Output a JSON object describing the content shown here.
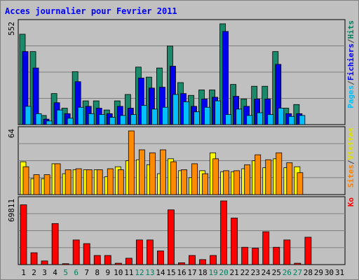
{
  "chart_data": {
    "type": "bar",
    "title": "Acces journalier pour Fevrier 2011",
    "days": [
      "1",
      "2",
      "3",
      "4",
      "5",
      "6",
      "7",
      "8",
      "9",
      "10",
      "11",
      "12",
      "13",
      "14",
      "15",
      "16",
      "17",
      "18",
      "19",
      "20",
      "21",
      "22",
      "23",
      "24",
      "25",
      "26",
      "27",
      "28",
      "29",
      "30",
      "31"
    ],
    "weekend_days": [
      "5",
      "6",
      "12",
      "13",
      "19",
      "20",
      "26",
      "27"
    ],
    "panels": [
      {
        "id": "hits",
        "ymax": 552,
        "ymax_label": "552",
        "right_labels": [
          {
            "text": "Pages",
            "color": "#00bfff"
          },
          {
            "text": "/",
            "color": "#404040"
          },
          {
            "text": "Fichiers",
            "color": "#0000ff"
          },
          {
            "text": "/",
            "color": "#404040"
          },
          {
            "text": "Hits",
            "color": "#008060"
          }
        ],
        "series": [
          {
            "name": "Hits",
            "color": "#1a8a6a",
            "values": [
              495,
              400,
              50,
              170,
              90,
              290,
              130,
              130,
              80,
              130,
              165,
              315,
              260,
              310,
              430,
              230,
              160,
              190,
              190,
              552,
              220,
              140,
              210,
              210,
              400,
              90,
              110,
              0,
              0,
              0,
              0
            ]
          },
          {
            "name": "Fichiers",
            "color": "#0000ee",
            "values": [
              400,
              310,
              30,
              120,
              60,
              235,
              100,
              90,
              60,
              100,
              90,
              255,
              200,
              205,
              320,
              170,
              100,
              140,
              150,
              510,
              155,
              100,
              140,
              140,
              330,
              60,
              60,
              0,
              0,
              0,
              0
            ]
          },
          {
            "name": "Pages",
            "color": "#00c0ff",
            "values": [
              100,
              60,
              20,
              80,
              35,
              95,
              60,
              55,
              40,
              50,
              55,
              105,
              85,
              95,
              165,
              125,
              70,
              95,
              130,
              55,
              85,
              50,
              65,
              55,
              90,
              45,
              50,
              0,
              0,
              0,
              0
            ]
          }
        ]
      },
      {
        "id": "visits",
        "ymax": 64,
        "ymax_label": "64",
        "right_labels": [
          {
            "text": "Sites",
            "color": "#ff8000"
          },
          {
            "text": "/",
            "color": "#404040"
          },
          {
            "text": "Visites",
            "color": "#e0e000"
          }
        ],
        "series": [
          {
            "name": "Visites",
            "color": "#ffff00",
            "values": [
              33,
              16,
              16,
              31,
              21,
              25,
              25,
              25,
              18,
              28,
              34,
              35,
              30,
              21,
              36,
              24,
              17,
              24,
              42,
              23,
              23,
              26,
              34,
              27,
              36,
              27,
              28,
              0,
              0,
              0,
              0
            ]
          },
          {
            "name": "Sites",
            "color": "#ff8c00",
            "values": [
              28,
              20,
              20,
              31,
              25,
              26,
              25,
              25,
              26,
              25,
              64,
              45,
              42,
              45,
              33,
              25,
              31,
              21,
              36,
              24,
              24,
              30,
              40,
              35,
              42,
              32,
              22,
              0,
              0,
              0,
              0
            ]
          }
        ]
      },
      {
        "id": "kb",
        "ymax": 69811,
        "ymax_label": "69811",
        "right_labels": [
          {
            "text": "Ko",
            "color": "#ff0000"
          }
        ],
        "series": [
          {
            "name": "Ko",
            "color": "#ff0000",
            "values": [
              65500,
              13000,
              4000,
              45000,
              1000,
              27000,
              23000,
              10000,
              10000,
              1500,
              7000,
              27000,
              27000,
              15000,
              60000,
              2000,
              10000,
              5500,
              10000,
              69811,
              51000,
              19000,
              18000,
              36000,
              19000,
              27000,
              1500,
              30000,
              0,
              0,
              0
            ]
          }
        ]
      }
    ]
  }
}
